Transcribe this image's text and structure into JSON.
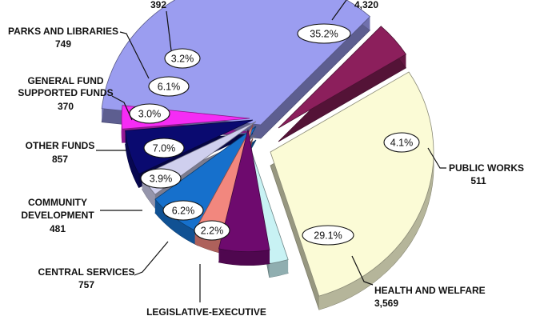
{
  "chart_data": {
    "type": "pie",
    "title": "",
    "categories": [
      "HEALTH AND WELFARE",
      "LEGISLATIVE-EXECUTIVE",
      "CENTRAL SERVICES",
      "COMMUNITY DEVELOPMENT",
      "OTHER FUNDS",
      "GENERAL FUND SUPPORTED FUNDS",
      "PARKS AND LIBRARIES",
      "",
      "",
      "PUBLIC WORKS"
    ],
    "values": [
      3569,
      270,
      757,
      481,
      857,
      370,
      749,
      392,
      4320,
      511
    ],
    "percent_labels": [
      "29.1%",
      "2.2%",
      "6.2%",
      "3.9%",
      "7.0%",
      "3.0%",
      "6.1%",
      "3.2%",
      "35.2%",
      "4.1%"
    ],
    "value_labels": [
      "3,569",
      "",
      "757",
      "481",
      "857",
      "370",
      "749",
      "392",
      "4,320",
      "511"
    ],
    "colors": [
      "#fbfbd6",
      "#c8f2f4",
      "#6e0a6e",
      "#f2877e",
      "#1670cc",
      "#cfcfee",
      "#0a0a70",
      "#f52cf5",
      "#9b9df0",
      "#8c1f5c"
    ],
    "legend": "none"
  }
}
